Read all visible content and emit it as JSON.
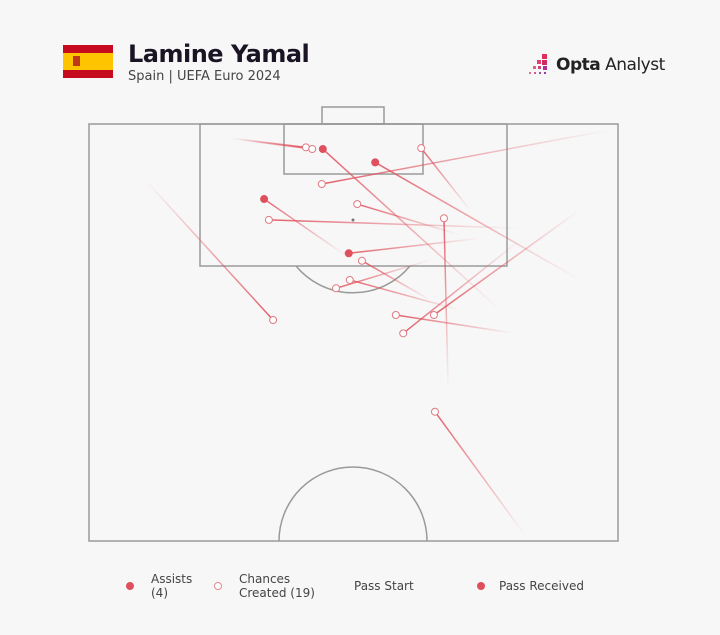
{
  "header": {
    "player_name": "Lamine Yamal",
    "subtitle": "Spain | UEFA Euro 2024",
    "flag": "spain-flag",
    "brand_bold": "Opta",
    "brand_light": "Analyst"
  },
  "legend": {
    "assists_label": "Assists",
    "assists_count": "(4)",
    "chances_label": "Chances",
    "chances_label2": "Created (19)",
    "pass_start": "Pass Start",
    "pass_received": "Pass Received"
  },
  "colors": {
    "accent": "#e0505c",
    "pitch_lines": "#9a9a9a",
    "background": "#f7f7f7"
  },
  "chart_data": {
    "type": "pass-map",
    "coordinate_system": "opta 0-100 (x = length toward goal, y = width left to right)",
    "passes": [
      {
        "type": "chance",
        "start": [
          98.3,
          26.7
        ],
        "end": [
          97.2,
          41.0
        ]
      },
      {
        "type": "chance",
        "start": [
          98.1,
          28.5
        ],
        "end": [
          97.0,
          42.2
        ]
      },
      {
        "type": "assist",
        "start": [
          77.7,
          77.7
        ],
        "end": [
          97.0,
          44.2
        ]
      },
      {
        "type": "assist",
        "start": [
          81.3,
          92.8
        ],
        "end": [
          95.4,
          54.1
        ]
      },
      {
        "type": "chance",
        "start": [
          99.3,
          98.5
        ],
        "end": [
          92.8,
          44.0
        ]
      },
      {
        "type": "chance",
        "start": [
          89.7,
          72.0
        ],
        "end": [
          97.1,
          62.8
        ]
      },
      {
        "type": "assist",
        "start": [
          84.3,
          48.4
        ],
        "end": [
          91.0,
          33.1
        ]
      },
      {
        "type": "assist",
        "start": [
          86.3,
          73.9
        ],
        "end": [
          84.5,
          49.1
        ]
      },
      {
        "type": "chance",
        "start": [
          87.5,
          81.5
        ],
        "end": [
          88.5,
          34.0
        ]
      },
      {
        "type": "chance",
        "start": [
          86.7,
          70.1
        ],
        "end": [
          90.4,
          50.7
        ]
      },
      {
        "type": "chance",
        "start": [
          68.1,
          67.9
        ],
        "end": [
          88.7,
          67.1
        ]
      },
      {
        "type": "chance",
        "start": [
          78.9,
          64.5
        ],
        "end": [
          83.6,
          51.6
        ]
      },
      {
        "type": "chance",
        "start": [
          77.7,
          70.1
        ],
        "end": [
          81.3,
          49.3
        ]
      },
      {
        "type": "chance",
        "start": [
          83.7,
          64.5
        ],
        "end": [
          80.3,
          46.7
        ]
      },
      {
        "type": "chance",
        "start": [
          93.3,
          10.6
        ],
        "end": [
          76.5,
          34.8
        ]
      },
      {
        "type": "chance",
        "start": [
          74.9,
          80.5
        ],
        "end": [
          77.1,
          58.0
        ]
      },
      {
        "type": "chance",
        "start": [
          89.7,
          92.8
        ],
        "end": [
          77.1,
          65.2
        ]
      },
      {
        "type": "chance",
        "start": [
          86.1,
          81.5
        ],
        "end": [
          74.9,
          59.4
        ]
      },
      {
        "type": "chance",
        "start": [
          50.7,
          82.4
        ],
        "end": [
          65.5,
          65.4
        ]
      }
    ]
  }
}
